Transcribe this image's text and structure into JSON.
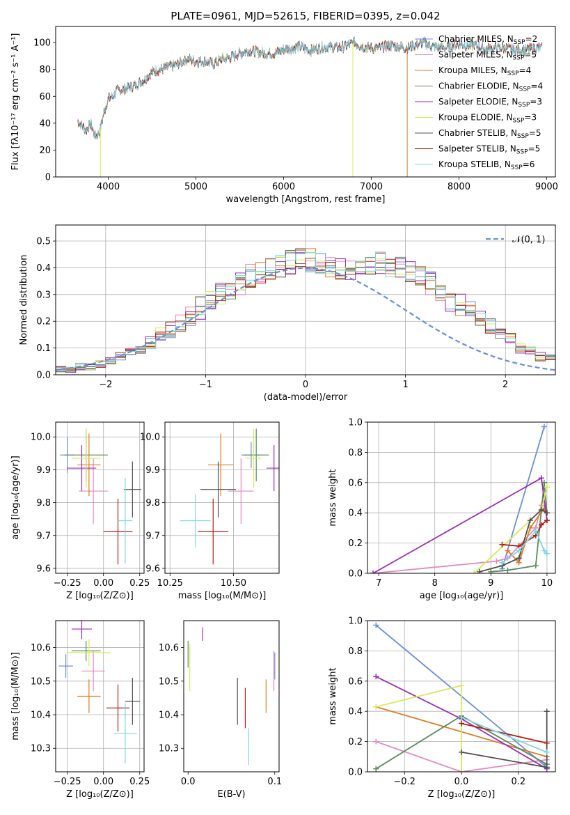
{
  "colors": [
    "#6a8fd8",
    "#e58ac0",
    "#e07b25",
    "#5b8a5e",
    "#9b2eb5",
    "#d8e85a",
    "#505050",
    "#b0201a",
    "#7fd6e0"
  ],
  "chart_data": [
    {
      "type": "line",
      "title": "PLATE=0961, MJD=52615, FIBERID=0395, z=0.042",
      "xlabel": "wavelength [Angstrom, rest frame]",
      "ylabel": "Flux [fλ10⁻¹⁷ erg cm⁻² s⁻¹ A⁻¹]",
      "xlim": [
        3400,
        9100
      ],
      "ylim": [
        0,
        112
      ],
      "xticks": [
        4000,
        5000,
        6000,
        7000,
        8000,
        9000
      ],
      "yticks": [
        0,
        20,
        40,
        60,
        80,
        100
      ],
      "grid": false,
      "legend_position": "upper-right",
      "spectrum_envelope": {
        "x": [
          3650,
          3700,
          3750,
          3800,
          3850,
          3900,
          3950,
          4000,
          4050,
          4100,
          4200,
          4300,
          4400,
          4500,
          4600,
          4700,
          4800,
          4900,
          5000,
          5100,
          5200,
          5300,
          5400,
          5500,
          5600,
          5700,
          5800,
          5900,
          6000,
          6100,
          6200,
          6300,
          6400,
          6500,
          6600,
          6700,
          6800,
          6900,
          7000,
          7100,
          7200,
          7300,
          7400,
          7500,
          7600,
          7700,
          7800,
          7900,
          8000,
          8100,
          8200,
          8300,
          8400,
          8500,
          8600,
          8700,
          8800,
          8900
        ],
        "y": [
          42,
          38,
          35,
          40,
          30,
          33,
          48,
          58,
          60,
          64,
          66,
          68,
          72,
          78,
          80,
          82,
          84,
          88,
          86,
          86,
          84,
          88,
          89,
          92,
          94,
          93,
          92,
          92,
          95,
          96,
          97,
          94,
          96,
          97,
          96,
          97,
          100,
          97,
          96,
          96,
          98,
          97,
          96,
          98,
          100,
          97,
          96,
          97,
          99,
          98,
          98,
          95,
          96,
          96,
          95,
          94,
          95,
          96
        ]
      },
      "legend": [
        {
          "label": "Chabrier MILES, N_SSP=2",
          "pre": "Chabrier MILES, N",
          "sub": "SSP",
          "post": "=2"
        },
        {
          "label": "Salpeter MILES, N_SSP=5",
          "pre": "Salpeter MILES, N",
          "sub": "SSP",
          "post": "=5"
        },
        {
          "label": "Kroupa MILES, N_SSP=4",
          "pre": "Kroupa MILES, N",
          "sub": "SSP",
          "post": "=4"
        },
        {
          "label": "Chabrier ELODIE, N_SSP=4",
          "pre": "Chabrier ELODIE, N",
          "sub": "SSP",
          "post": "=4"
        },
        {
          "label": "Salpeter ELODIE, N_SSP=3",
          "pre": "Salpeter ELODIE, N",
          "sub": "SSP",
          "post": "=3"
        },
        {
          "label": "Kroupa ELODIE, N_SSP=3",
          "pre": "Kroupa ELODIE, N",
          "sub": "SSP",
          "post": "=3"
        },
        {
          "label": "Chabrier STELIB, N_SSP=5",
          "pre": "Chabrier STELIB, N",
          "sub": "SSP",
          "post": "=5"
        },
        {
          "label": "Salpeter STELIB, N_SSP=5",
          "pre": "Salpeter STELIB, N",
          "sub": "SSP",
          "post": "=5"
        },
        {
          "label": "Kroupa STELIB, N_SSP=6",
          "pre": "Kroupa STELIB, N",
          "sub": "SSP",
          "post": "=6"
        }
      ],
      "drops": [
        {
          "series": 5,
          "x": 3910
        },
        {
          "series": 5,
          "x": 6790
        },
        {
          "series": 2,
          "x": 7410
        }
      ]
    },
    {
      "type": "histogram",
      "title": "",
      "xlabel": "(data-model)/error",
      "ylabel": "Normed distribution",
      "xlim": [
        -2.5,
        2.5
      ],
      "ylim": [
        0,
        0.56
      ],
      "xticks": [
        -2,
        -1,
        0,
        1,
        2
      ],
      "xtick_labels": [
        "−2",
        "−1",
        "0",
        "1",
        "2"
      ],
      "yticks": [
        0.0,
        0.1,
        0.2,
        0.3,
        0.4,
        0.5
      ],
      "ytick_labels": [
        "0.0",
        "0.1",
        "0.2",
        "0.3",
        "0.4",
        "0.5"
      ],
      "grid": true,
      "bin_edges_start": -2.6,
      "bin_width": 0.1,
      "base_counts": [
        0.01,
        0.02,
        0.02,
        0.03,
        0.03,
        0.04,
        0.05,
        0.07,
        0.08,
        0.1,
        0.12,
        0.15,
        0.17,
        0.19,
        0.22,
        0.25,
        0.28,
        0.3,
        0.32,
        0.34,
        0.37,
        0.38,
        0.4,
        0.41,
        0.42,
        0.43,
        0.43,
        0.42,
        0.41,
        0.4,
        0.4,
        0.41,
        0.42,
        0.42,
        0.41,
        0.4,
        0.38,
        0.36,
        0.34,
        0.31,
        0.28,
        0.26,
        0.24,
        0.21,
        0.18,
        0.16,
        0.13,
        0.1,
        0.09,
        0.07,
        0.06,
        0.05,
        0.04
      ],
      "gaussian_label": "𝒩(0, 1)",
      "gaussian_pre": "𝒩(0, 1)"
    },
    {
      "type": "errorbar",
      "xlabel": "Z [log₁₀(Z/Z⊙)]",
      "ylabel": "age  [log₁₀(age/yr)]",
      "xlim": [
        -0.33,
        0.28
      ],
      "ylim": [
        9.585,
        10.045
      ],
      "xticks": [
        -0.25,
        0.0,
        0.25
      ],
      "xtick_labels": [
        "−0.25",
        "0.00",
        "0.25"
      ],
      "yticks": [
        9.6,
        9.7,
        9.8,
        9.9,
        10.0
      ],
      "ytick_labels": [
        "9.6",
        "9.7",
        "9.8",
        "9.9",
        "10.0"
      ],
      "grid": true,
      "points": [
        {
          "x": -0.25,
          "y": 9.945,
          "xerr": 0.05,
          "yerr": 0.055
        },
        {
          "x": -0.07,
          "y": 9.835,
          "xerr": 0.1,
          "yerr": 0.1
        },
        {
          "x": -0.1,
          "y": 9.915,
          "xerr": 0.08,
          "yerr": 0.095
        },
        {
          "x": -0.12,
          "y": 9.945,
          "xerr": 0.15,
          "yerr": 0.08
        },
        {
          "x": -0.15,
          "y": 9.905,
          "xerr": 0.1,
          "yerr": 0.07
        },
        {
          "x": -0.12,
          "y": 9.935,
          "xerr": 0.1,
          "yerr": 0.09
        },
        {
          "x": 0.2,
          "y": 9.84,
          "xerr": 0.06,
          "yerr": 0.085
        },
        {
          "x": 0.1,
          "y": 9.712,
          "xerr": 0.1,
          "yerr": 0.1
        },
        {
          "x": 0.15,
          "y": 9.745,
          "xerr": 0.05,
          "yerr": 0.13
        }
      ]
    },
    {
      "type": "errorbar",
      "xlabel": "mass [log₁₀(M/M⊙)]",
      "ylabel": "",
      "xlim": [
        10.23,
        10.68
      ],
      "ylim": [
        9.585,
        10.045
      ],
      "xticks": [
        10.25,
        10.5
      ],
      "xtick_labels": [
        "10.25",
        "10.50"
      ],
      "yticks": [
        9.6,
        9.7,
        9.8,
        9.9,
        10.0
      ],
      "ytick_labels": [
        "9.6",
        "9.7",
        "9.8",
        "9.9",
        "10.0"
      ],
      "grid": true,
      "points": [
        {
          "x": 10.57,
          "y": 9.945,
          "xerr": 0.04,
          "yerr": 0.04
        },
        {
          "x": 10.53,
          "y": 9.835,
          "xerr": 0.05,
          "yerr": 0.1
        },
        {
          "x": 10.45,
          "y": 9.915,
          "xerr": 0.05,
          "yerr": 0.095
        },
        {
          "x": 10.59,
          "y": 9.945,
          "xerr": 0.05,
          "yerr": 0.08
        },
        {
          "x": 10.66,
          "y": 9.905,
          "xerr": 0.03,
          "yerr": 0.07
        },
        {
          "x": 10.58,
          "y": 9.935,
          "xerr": 0.03,
          "yerr": 0.09
        },
        {
          "x": 10.44,
          "y": 9.84,
          "xerr": 0.07,
          "yerr": 0.085
        },
        {
          "x": 10.42,
          "y": 9.712,
          "xerr": 0.06,
          "yerr": 0.1
        },
        {
          "x": 10.35,
          "y": 9.745,
          "xerr": 0.06,
          "yerr": 0.08
        }
      ]
    },
    {
      "type": "line",
      "xlabel": "age  [log₁₀(age/yr)]",
      "ylabel": "mass weight",
      "xlim": [
        6.8,
        10.15
      ],
      "ylim": [
        0,
        1.0
      ],
      "xticks": [
        7,
        8,
        9,
        10
      ],
      "xtick_labels": [
        "7",
        "8",
        "9",
        "10"
      ],
      "yticks": [
        0.0,
        0.2,
        0.4,
        0.6,
        0.8,
        1.0
      ],
      "ytick_labels": [
        "0.0",
        "0.2",
        "0.4",
        "0.6",
        "0.8",
        "1.0"
      ],
      "grid": true,
      "series": [
        {
          "x": [
            9.2,
            9.95
          ],
          "y": [
            0.03,
            0.97
          ]
        },
        {
          "x": [
            6.9,
            9.1,
            9.3,
            9.8,
            9.9
          ],
          "y": [
            0.0,
            0.08,
            0.1,
            0.3,
            0.45
          ]
        },
        {
          "x": [
            9.3,
            9.5,
            9.7,
            9.95,
            10.0
          ],
          "y": [
            0.15,
            0.07,
            0.3,
            0.43,
            0.4
          ]
        },
        {
          "x": [
            9.0,
            9.3,
            9.8,
            9.95,
            10.0
          ],
          "y": [
            0.01,
            0.02,
            0.05,
            0.6,
            0.4
          ]
        },
        {
          "x": [
            6.9,
            9.9,
            10.0
          ],
          "y": [
            0.0,
            0.63,
            0.35
          ]
        },
        {
          "x": [
            8.7,
            9.9,
            10.0
          ],
          "y": [
            0.0,
            0.42,
            0.57
          ]
        },
        {
          "x": [
            8.8,
            9.2,
            9.5,
            9.7,
            9.9,
            10.0
          ],
          "y": [
            0.01,
            0.05,
            0.1,
            0.35,
            0.42,
            0.4
          ]
        },
        {
          "x": [
            9.2,
            9.5,
            9.8,
            9.9,
            10.0
          ],
          "y": [
            0.19,
            0.18,
            0.25,
            0.32,
            0.35
          ]
        },
        {
          "x": [
            9.2,
            9.5,
            9.8,
            9.95,
            10.0
          ],
          "y": [
            0.07,
            0.15,
            0.28,
            0.15,
            0.13
          ]
        }
      ]
    },
    {
      "type": "errorbar",
      "xlabel": "Z [log₁₀(Z/Z⊙)]",
      "ylabel": "mass [log₁₀(M/M⊙)]",
      "xlim": [
        -0.33,
        0.28
      ],
      "ylim": [
        10.23,
        10.68
      ],
      "xticks": [
        -0.25,
        0.0,
        0.25
      ],
      "xtick_labels": [
        "−0.25",
        "0.00",
        "0.25"
      ],
      "yticks": [
        10.3,
        10.4,
        10.5,
        10.6
      ],
      "ytick_labels": [
        "10.3",
        "10.4",
        "10.5",
        "10.6"
      ],
      "grid": true,
      "points": [
        {
          "x": -0.26,
          "y": 10.545,
          "xerr": 0.05,
          "yerr": 0.035
        },
        {
          "x": -0.07,
          "y": 10.53,
          "xerr": 0.08,
          "yerr": 0.06
        },
        {
          "x": -0.1,
          "y": 10.455,
          "xerr": 0.08,
          "yerr": 0.05
        },
        {
          "x": -0.12,
          "y": 10.59,
          "xerr": 0.1,
          "yerr": 0.03
        },
        {
          "x": -0.15,
          "y": 10.655,
          "xerr": 0.07,
          "yerr": 0.03
        },
        {
          "x": -0.1,
          "y": 10.585,
          "xerr": 0.15,
          "yerr": 0.04
        },
        {
          "x": 0.2,
          "y": 10.44,
          "xerr": 0.05,
          "yerr": 0.07
        },
        {
          "x": 0.1,
          "y": 10.42,
          "xerr": 0.08,
          "yerr": 0.07
        },
        {
          "x": 0.15,
          "y": 10.345,
          "xerr": 0.08,
          "yerr": 0.09
        }
      ]
    },
    {
      "type": "errorbar",
      "xlabel": "E(B-V)",
      "ylabel": "",
      "xlim": [
        -0.005,
        0.105
      ],
      "ylim": [
        10.23,
        10.68
      ],
      "xticks": [
        0.0,
        0.1
      ],
      "xtick_labels": [
        "0.0",
        "0.1"
      ],
      "yticks": [
        10.3,
        10.4,
        10.5,
        10.6
      ],
      "ytick_labels": [
        "10.3",
        "10.4",
        "10.5",
        "10.6"
      ],
      "grid": false,
      "points": [
        {
          "x": 0.1,
          "y": 10.545,
          "xerr": 0,
          "yerr": 0.04
        },
        {
          "x": 0.099,
          "y": 10.53,
          "xerr": 0,
          "yerr": 0.06
        },
        {
          "x": 0.09,
          "y": 10.455,
          "xerr": 0,
          "yerr": 0.05
        },
        {
          "x": 0.0,
          "y": 10.58,
          "xerr": 0,
          "yerr": 0.04
        },
        {
          "x": 0.017,
          "y": 10.64,
          "xerr": 0,
          "yerr": 0.02
        },
        {
          "x": 0.002,
          "y": 10.54,
          "xerr": 0,
          "yerr": 0.07
        },
        {
          "x": 0.057,
          "y": 10.44,
          "xerr": 0,
          "yerr": 0.07
        },
        {
          "x": 0.066,
          "y": 10.42,
          "xerr": 0,
          "yerr": 0.06
        },
        {
          "x": 0.07,
          "y": 10.305,
          "xerr": 0,
          "yerr": 0.055
        }
      ]
    },
    {
      "type": "line",
      "xlabel": "Z [log₁₀(Z/Z⊙)]",
      "ylabel": "mass weight",
      "xlim": [
        -0.33,
        0.33
      ],
      "ylim": [
        0,
        1.0
      ],
      "xticks": [
        -0.2,
        0.0,
        0.2
      ],
      "xtick_labels": [
        "−0.2",
        "0.0",
        "0.2"
      ],
      "yticks": [
        0.0,
        0.2,
        0.4,
        0.6,
        0.8,
        1.0
      ],
      "ytick_labels": [
        "0.0",
        "0.2",
        "0.4",
        "0.6",
        "0.8",
        "1.0"
      ],
      "grid": true,
      "series": [
        {
          "x": [
            -0.3,
            0.3
          ],
          "y": [
            0.97,
            0.03
          ]
        },
        {
          "x": [
            -0.3,
            0.0,
            0.3
          ],
          "y": [
            0.2,
            0.0,
            0.08
          ]
        },
        {
          "x": [
            -0.3,
            0.3
          ],
          "y": [
            0.43,
            0.1
          ]
        },
        {
          "x": [
            -0.3,
            0.0,
            0.3
          ],
          "y": [
            0.02,
            0.37,
            0.05
          ]
        },
        {
          "x": [
            -0.3,
            0.0,
            0.3
          ],
          "y": [
            0.63,
            0.35,
            0.02
          ]
        },
        {
          "x": [
            -0.3,
            0.0,
            0.0
          ],
          "y": [
            0.43,
            0.57,
            0.0
          ]
        },
        {
          "x": [
            0.0,
            0.3,
            0.3
          ],
          "y": [
            0.13,
            0.03,
            0.4
          ]
        },
        {
          "x": [
            0.0,
            0.3
          ],
          "y": [
            0.32,
            0.19
          ]
        },
        {
          "x": [
            0.0,
            0.3
          ],
          "y": [
            0.36,
            0.13
          ]
        }
      ]
    }
  ]
}
